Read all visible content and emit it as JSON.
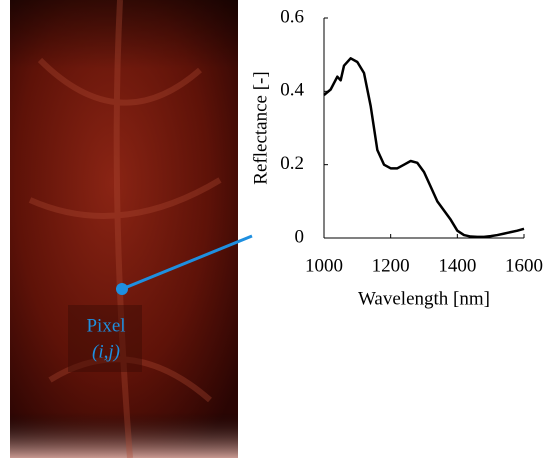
{
  "chart_data": {
    "type": "line",
    "x_label": "Wavelength [nm]",
    "y_label": "Reflectance [-]",
    "x": [
      1000,
      1020,
      1040,
      1050,
      1060,
      1080,
      1100,
      1120,
      1140,
      1160,
      1180,
      1200,
      1220,
      1240,
      1260,
      1280,
      1300,
      1320,
      1340,
      1360,
      1380,
      1400,
      1420,
      1440,
      1460,
      1480,
      1500,
      1520,
      1540,
      1560,
      1580,
      1600
    ],
    "series": [
      {
        "color": "#000000",
        "values": [
          0.39,
          0.405,
          0.44,
          0.43,
          0.47,
          0.49,
          0.48,
          0.45,
          0.36,
          0.24,
          0.2,
          0.19,
          0.19,
          0.2,
          0.21,
          0.205,
          0.18,
          0.14,
          0.1,
          0.075,
          0.05,
          0.02,
          0.008,
          0.004,
          0.003,
          0.003,
          0.005,
          0.008,
          0.012,
          0.016,
          0.02,
          0.025
        ]
      }
    ],
    "xlim": [
      1000,
      1600
    ],
    "xticks": [
      1000,
      1200,
      1400,
      1600
    ],
    "ylim": [
      0,
      0.6
    ],
    "yticks": [
      0,
      0.2,
      0.4,
      0.6
    ],
    "annotation": {
      "label": "Pixel",
      "coords": "(i,j)",
      "color": "#1e8fe0"
    }
  }
}
